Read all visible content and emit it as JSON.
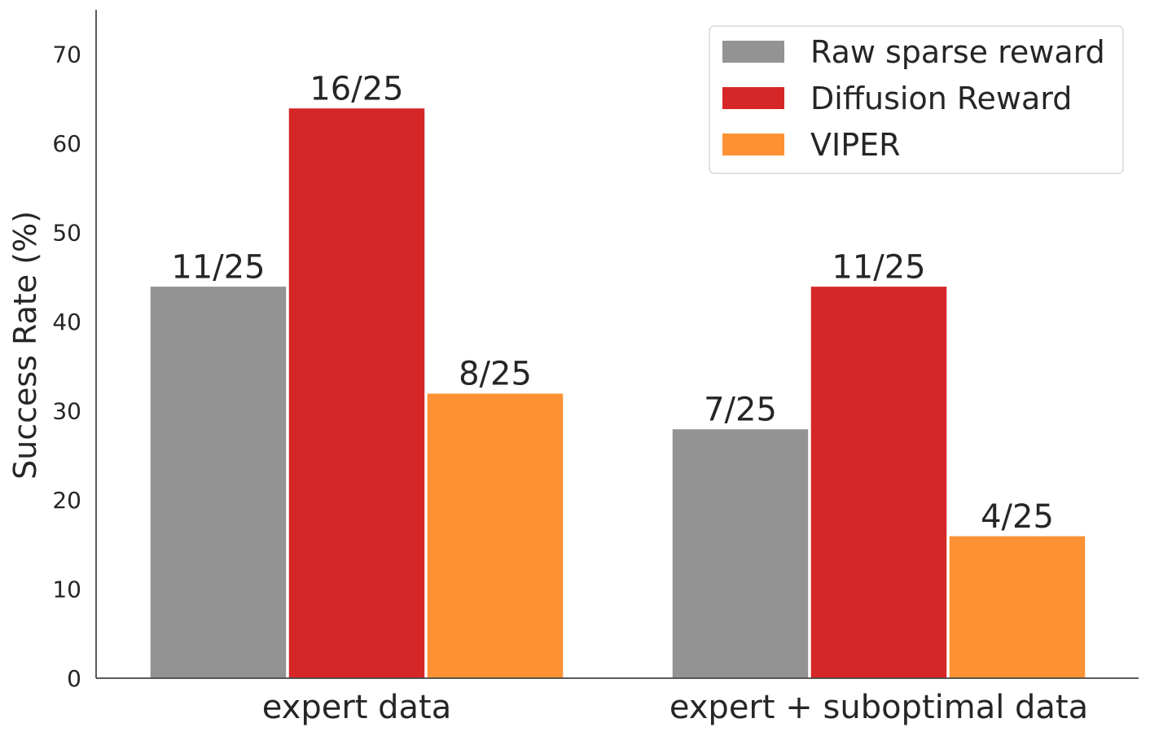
{
  "chart_data": {
    "type": "bar",
    "categories": [
      "expert data",
      "expert + suboptimal data"
    ],
    "series": [
      {
        "name": "Raw sparse reward",
        "color": "#939393",
        "values": [
          44,
          28
        ],
        "labels": [
          "11/25",
          "7/25"
        ]
      },
      {
        "name": "Diffusion Reward",
        "color": "#d62728",
        "values": [
          64,
          44
        ],
        "labels": [
          "16/25",
          "11/25"
        ]
      },
      {
        "name": "VIPER",
        "color": "#fd9235",
        "values": [
          32,
          16
        ],
        "labels": [
          "8/25",
          "4/25"
        ]
      }
    ],
    "xlabel": "",
    "ylabel": "Success Rate (%)",
    "ylim": [
      0,
      75
    ],
    "yticks": [
      0,
      10,
      20,
      30,
      40,
      50,
      60,
      70
    ],
    "grid": false,
    "legend_position": "top-right"
  }
}
